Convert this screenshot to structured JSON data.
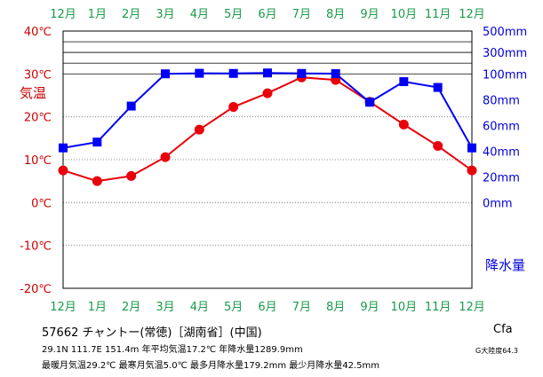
{
  "chart_data": {
    "type": "line",
    "categories": [
      "12月",
      "1月",
      "2月",
      "3月",
      "4月",
      "5月",
      "6月",
      "7月",
      "8月",
      "9月",
      "10月",
      "11月",
      "12月"
    ],
    "temp_axis": {
      "label": "気温",
      "ticks": [
        "40℃",
        "30℃",
        "20℃",
        "10℃",
        "0℃",
        "-10℃",
        "-20℃"
      ],
      "tick_values": [
        40,
        30,
        20,
        10,
        0,
        -10,
        -20
      ],
      "range": [
        -20,
        40
      ]
    },
    "precip_axis": {
      "label": "降水量",
      "ticks": [
        "500mm",
        "300mm",
        "100mm",
        "80mm",
        "60mm",
        "40mm",
        "20mm",
        "0mm"
      ],
      "tick_values": [
        500,
        300,
        100,
        80,
        60,
        40,
        20,
        0
      ],
      "linear_range": [
        0,
        100
      ],
      "extended_marks": [
        200,
        300,
        400,
        500
      ]
    },
    "series": [
      {
        "key": "temperature",
        "values": [
          7.5,
          5.0,
          6.2,
          10.6,
          17.0,
          22.3,
          25.5,
          29.2,
          28.6,
          23.5,
          18.2,
          13.2,
          7.5
        ]
      },
      {
        "key": "precipitation",
        "values": [
          42.5,
          47.0,
          75.0,
          101.0,
          106.0,
          104.5,
          109.0,
          104.5,
          103.0,
          78.0,
          94.0,
          89.5,
          42.5
        ]
      }
    ],
    "colors": {
      "temperature": "#e8000b",
      "precipitation": "#0000f4",
      "label_green": "#1a9a4a",
      "temp_label": "#cc0000",
      "precip_label": "#0000dd"
    }
  },
  "info": {
    "station": "57662  チャントー(常徳)［湖南省］(中国)",
    "line1": "29.1N  111.7E  151.4m  年平均気温17.2℃  年降水量1289.9mm",
    "line2": "最暖月気温29.2℃ 最寒月気温5.0℃ 最多月降水量179.2mm 最少月降水量42.5mm",
    "climate_class": "Cfa",
    "continentality": "G大陸度64.3"
  }
}
